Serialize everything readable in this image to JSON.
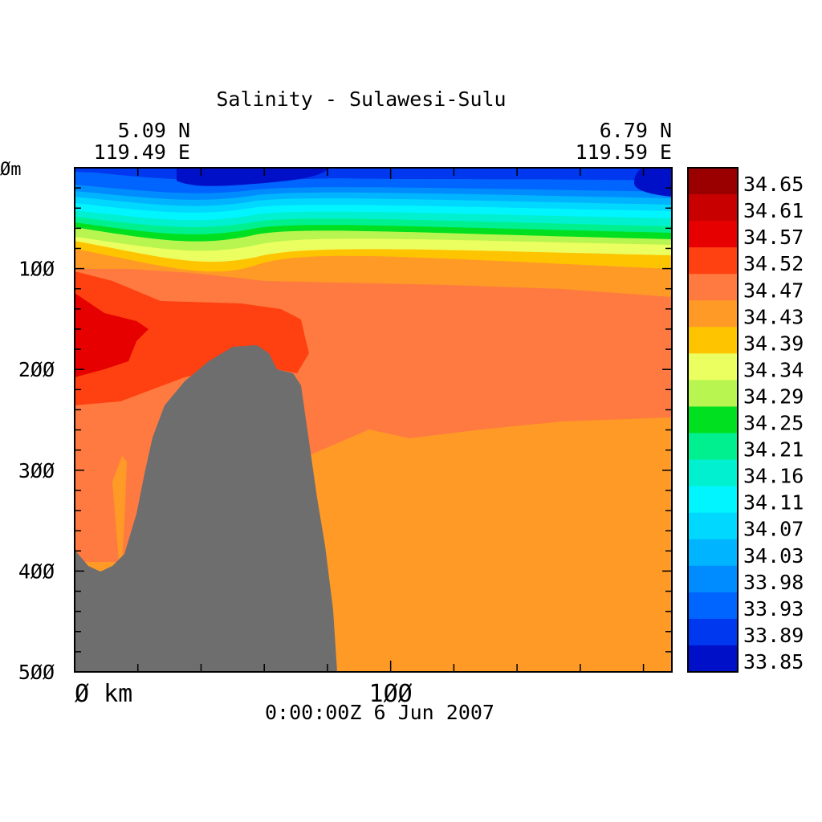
{
  "chart_data": {
    "type": "heatmap",
    "title": "Salinity - Sulawesi-Sulu",
    "start_point": {
      "lat": "5.09 N",
      "lon": "119.49 E"
    },
    "end_point": {
      "lat": "6.79 N",
      "lon": "119.59 E"
    },
    "timestamp": "0:00:00Z   6 Jun 2007",
    "x_axis": {
      "unit_label": "km",
      "first_label": "0",
      "ticks": [
        0,
        100
      ],
      "range_km": [
        0,
        189
      ]
    },
    "y_axis": {
      "unit_label": "m",
      "ticks": [
        0,
        100,
        200,
        300,
        400,
        500
      ],
      "range_m": [
        0,
        500
      ],
      "reversed": true
    },
    "colorbar": {
      "levels": [
        "34.65",
        "34.61",
        "34.57",
        "34.52",
        "34.47",
        "34.43",
        "34.39",
        "34.34",
        "34.29",
        "34.25",
        "34.21",
        "34.16",
        "34.11",
        "34.07",
        "34.03",
        "33.98",
        "33.93",
        "33.89",
        "33.85"
      ],
      "colors": [
        "#9b0000",
        "#c80000",
        "#e60000",
        "#ff4010",
        "#ff7a40",
        "#ff9a26",
        "#ffc400",
        "#ecff60",
        "#b8f550",
        "#00e020",
        "#00f090",
        "#00f0d0",
        "#00f5ff",
        "#00d8ff",
        "#00b4ff",
        "#008cff",
        "#0064ff",
        "#0038f0",
        "#0010c8"
      ]
    },
    "land_color": "#6e6e6e",
    "layers": [
      {
        "value": "34.43",
        "depth_top_m": 110,
        "description_bins": "deep water below ~260 m"
      },
      {
        "value": "34.47",
        "depth_top_m": 100
      },
      {
        "value": "34.52",
        "depth_top_m": 110
      },
      {
        "value": "34.57",
        "depth_top_m": 130
      }
    ]
  }
}
